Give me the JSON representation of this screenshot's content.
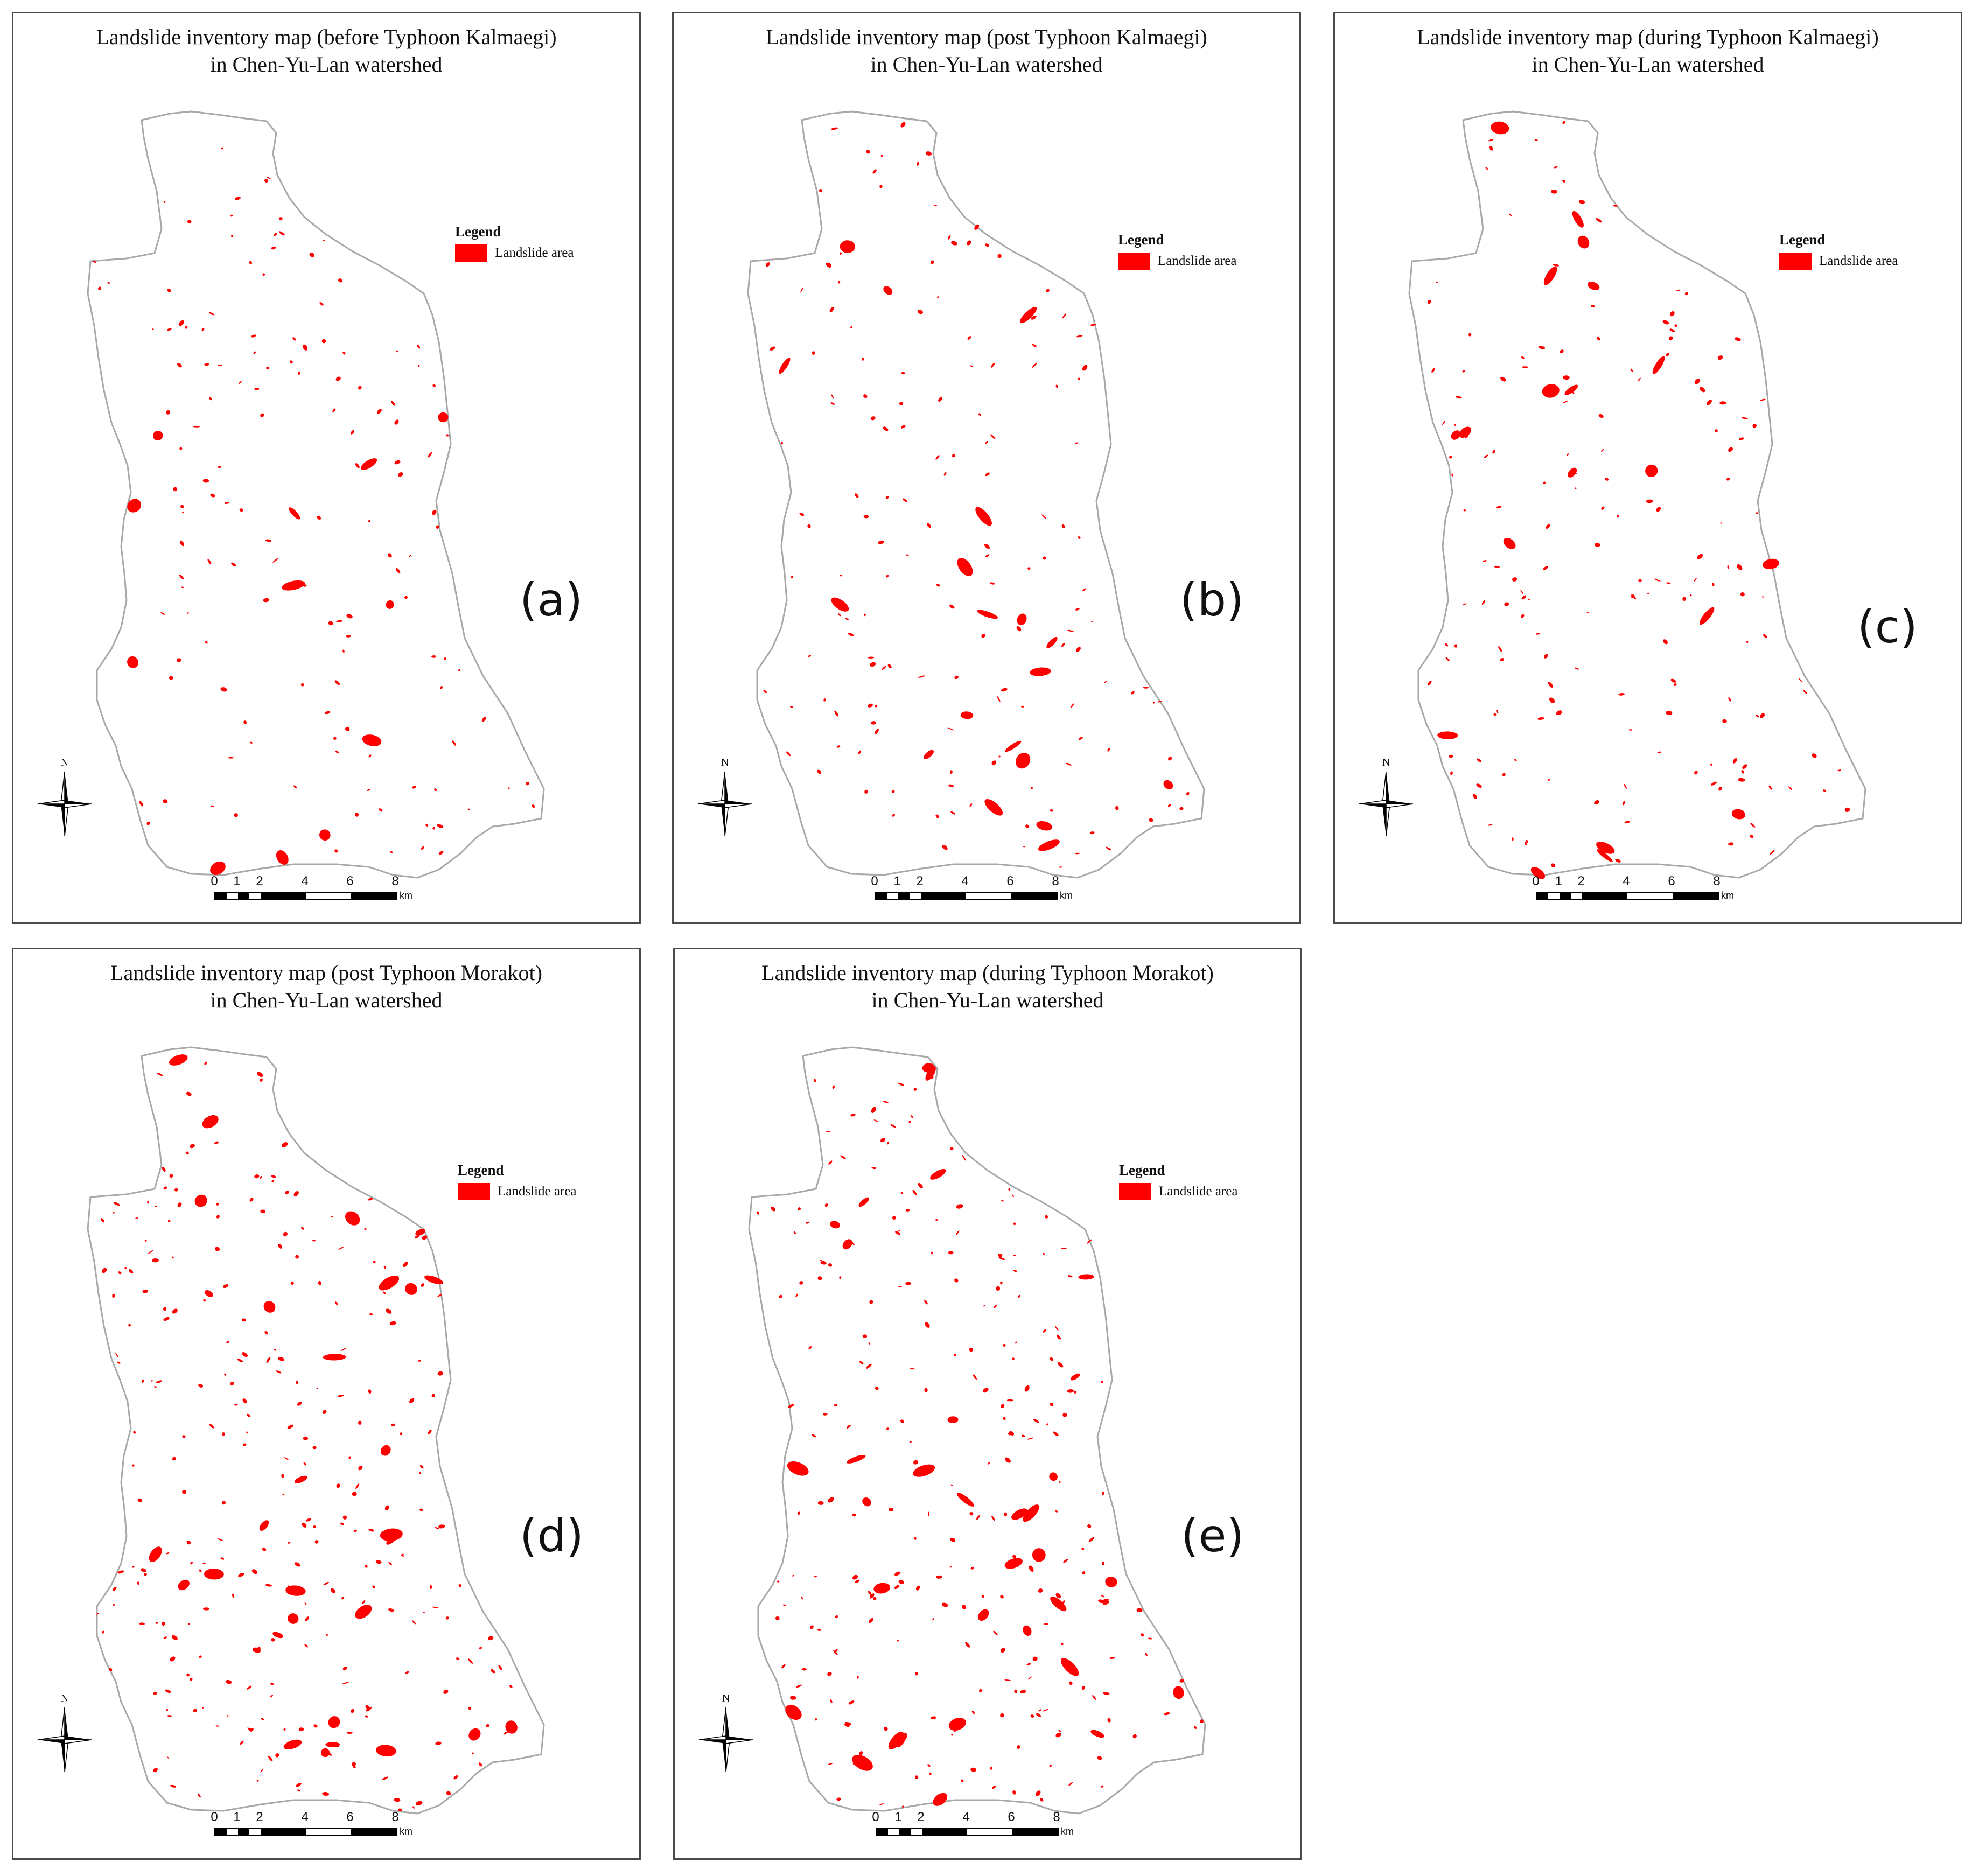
{
  "colors": {
    "landslide": "#ff0000",
    "boundary": "#a8a8a8",
    "frame": "#4a4a4a",
    "text": "#111111"
  },
  "common": {
    "legend_title": "Legend",
    "legend_item": "Landslide area",
    "north_label": "N",
    "scale_ticks": [
      "0",
      "1",
      "2",
      "4",
      "6",
      "8"
    ],
    "scale_unit": "km"
  },
  "panels": [
    {
      "letter": "(a)",
      "title_line1": "Landslide inventory map (before Typhoon Kalmaegi)",
      "title_line2": "in Chen-Yu-Lan watershed",
      "landslide_seed": 11,
      "landslide_count": 150
    },
    {
      "letter": "(b)",
      "title_line1": "Landslide inventory map (post Typhoon Kalmaegi)",
      "title_line2": "in Chen-Yu-Lan watershed",
      "landslide_seed": 23,
      "landslide_count": 170
    },
    {
      "letter": "(c)",
      "title_line1": "Landslide inventory map (during Typhoon Kalmaegi)",
      "title_line2": "in Chen-Yu-Lan watershed",
      "landslide_seed": 37,
      "landslide_count": 190
    },
    {
      "letter": "(d)",
      "title_line1": "Landslide inventory map (post Typhoon Morakot)",
      "title_line2": "in Chen-Yu-Lan watershed",
      "landslide_seed": 53,
      "landslide_count": 300
    },
    {
      "letter": "(e)",
      "title_line1": "Landslide inventory map (during Typhoon Morakot)",
      "title_line2": "in Chen-Yu-Lan watershed",
      "landslide_seed": 71,
      "landslide_count": 290
    }
  ]
}
